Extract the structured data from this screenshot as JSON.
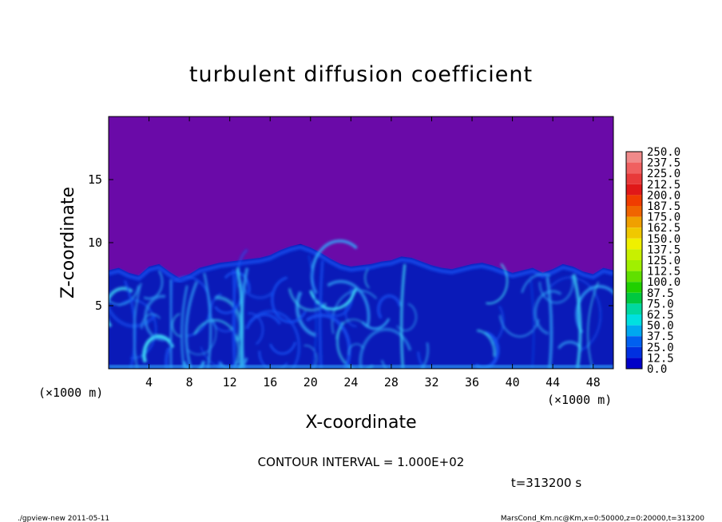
{
  "chart_data": {
    "type": "heatmap",
    "title": "turbulent diffusion coefficient",
    "xlabel": "X-coordinate",
    "ylabel": "Z-coordinate",
    "x_unit_left": "(×1000 m)",
    "x_unit_right": "(×1000 m)",
    "xlim": [
      0,
      50
    ],
    "ylim": [
      0,
      20
    ],
    "x_ticks": [
      4,
      8,
      12,
      16,
      20,
      24,
      28,
      32,
      36,
      40,
      44,
      48
    ],
    "y_ticks": [
      5,
      10,
      15
    ],
    "colorbar_levels": [
      "250.0",
      "237.5",
      "225.0",
      "212.5",
      "200.0",
      "187.5",
      "175.0",
      "162.5",
      "150.0",
      "137.5",
      "125.0",
      "112.5",
      "100.0",
      "87.5",
      "75.0",
      "62.5",
      "50.0",
      "37.5",
      "25.0",
      "12.5",
      "0.0"
    ],
    "colorbar_colors": [
      "#f08a8a",
      "#f06060",
      "#e83a3a",
      "#e01818",
      "#f03c00",
      "#f06400",
      "#f0a000",
      "#f0c800",
      "#f0f000",
      "#c8f000",
      "#a0f000",
      "#60e000",
      "#20d000",
      "#00c840",
      "#00d8a0",
      "#00e0e0",
      "#00a8f0",
      "#0060f0",
      "#0030e0",
      "#0000c8",
      "#6400a8"
    ],
    "background_color": "#6a0aa8",
    "plume_top_km": [
      7.8,
      8.0,
      7.6,
      7.4,
      8.1,
      8.3,
      7.7,
      7.2,
      7.5,
      8.0,
      8.2,
      8.4,
      8.5,
      8.6,
      8.7,
      8.8,
      9.0,
      9.4,
      9.7,
      9.9,
      9.6,
      9.2,
      8.7,
      8.3,
      8.1,
      8.2,
      8.3,
      8.5,
      8.6,
      8.9,
      8.8,
      8.5,
      8.2,
      8.0,
      7.9,
      8.1,
      8.3,
      8.4,
      8.2,
      7.9,
      7.6,
      7.8,
      8.0,
      7.6,
      7.9,
      8.3,
      8.1,
      7.7,
      7.5,
      8.0,
      7.8
    ],
    "contour_interval_text": "CONTOUR INTERVAL = 1.000E+02",
    "time_text": "t=313200 s"
  },
  "footer": {
    "left": "./gpview-new  2011-05-11",
    "right": "MarsCond_Km.nc@Km,x=0:50000,z=0:20000,t=313200"
  },
  "colors": {
    "tick_text": "#000000",
    "frame": "#000000",
    "swirl_dark": "#0a1ab8",
    "swirl_mid": "#1650f0",
    "swirl_light": "#30a8f8",
    "swirl_bright": "#40e0f8"
  }
}
